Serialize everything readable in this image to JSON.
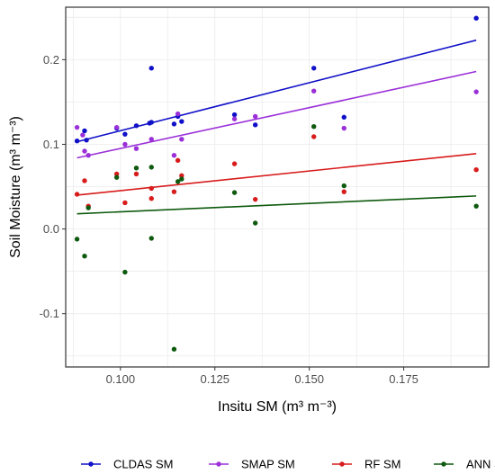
{
  "chart_data": {
    "type": "scatter",
    "title": "",
    "xlabel": "Insitu SM (m³ m⁻³)",
    "ylabel": "Soil Moisture (m³ m⁻³)",
    "xlim": [
      0.0855,
      0.1975
    ],
    "ylim": [
      -0.163,
      0.262
    ],
    "x_ticks": [
      0.1,
      0.125,
      0.15,
      0.175
    ],
    "x_tick_labels": [
      "0.100",
      "0.125",
      "0.150",
      "0.175"
    ],
    "y_ticks": [
      -0.1,
      0.0,
      0.1,
      0.2
    ],
    "y_tick_labels": [
      "-0.1",
      "0.0",
      "0.1",
      "0.2"
    ],
    "grid": true,
    "legend_position": "bottom",
    "series": [
      {
        "name": "CLDAS SM",
        "color": "#1010c8",
        "points": [
          [
            0.0885,
            0.104
          ],
          [
            0.0905,
            0.116
          ],
          [
            0.091,
            0.105
          ],
          [
            0.099,
            0.119
          ],
          [
            0.1012,
            0.112
          ],
          [
            0.1042,
            0.122
          ],
          [
            0.1077,
            0.125
          ],
          [
            0.1082,
            0.126
          ],
          [
            0.1082,
            0.19
          ],
          [
            0.1142,
            0.124
          ],
          [
            0.1152,
            0.133
          ],
          [
            0.1162,
            0.127
          ],
          [
            0.1302,
            0.135
          ],
          [
            0.1357,
            0.123
          ],
          [
            0.1512,
            0.19
          ],
          [
            0.1592,
            0.132
          ],
          [
            0.1942,
            0.249
          ]
        ],
        "fit": [
          [
            0.0885,
            0.103
          ],
          [
            0.1942,
            0.223
          ]
        ]
      },
      {
        "name": "SMAP SM",
        "color": "#9b30d9",
        "points": [
          [
            0.0885,
            0.12
          ],
          [
            0.09,
            0.111
          ],
          [
            0.0905,
            0.092
          ],
          [
            0.0915,
            0.087
          ],
          [
            0.099,
            0.12
          ],
          [
            0.1012,
            0.1
          ],
          [
            0.1042,
            0.095
          ],
          [
            0.1082,
            0.106
          ],
          [
            0.1142,
            0.087
          ],
          [
            0.1152,
            0.136
          ],
          [
            0.1162,
            0.106
          ],
          [
            0.1302,
            0.13
          ],
          [
            0.1357,
            0.133
          ],
          [
            0.1512,
            0.163
          ],
          [
            0.1592,
            0.119
          ],
          [
            0.1942,
            0.162
          ]
        ],
        "fit": [
          [
            0.0885,
            0.084
          ],
          [
            0.1942,
            0.186
          ]
        ]
      },
      {
        "name": "RF SM",
        "color": "#d81b1b",
        "points": [
          [
            0.0885,
            0.041
          ],
          [
            0.0905,
            0.057
          ],
          [
            0.0915,
            0.027
          ],
          [
            0.099,
            0.065
          ],
          [
            0.1012,
            0.031
          ],
          [
            0.1042,
            0.065
          ],
          [
            0.1082,
            0.048
          ],
          [
            0.1082,
            0.036
          ],
          [
            0.1142,
            0.044
          ],
          [
            0.1152,
            0.081
          ],
          [
            0.1162,
            0.063
          ],
          [
            0.1302,
            0.077
          ],
          [
            0.1357,
            0.035
          ],
          [
            0.1512,
            0.109
          ],
          [
            0.1592,
            0.044
          ],
          [
            0.1942,
            0.07
          ]
        ],
        "fit": [
          [
            0.0885,
            0.04
          ],
          [
            0.1942,
            0.089
          ]
        ]
      },
      {
        "name": "ANN SM",
        "color": "#0e5a0e",
        "points": [
          [
            0.0885,
            -0.012
          ],
          [
            0.0905,
            -0.032
          ],
          [
            0.0915,
            0.025
          ],
          [
            0.099,
            0.061
          ],
          [
            0.1012,
            -0.051
          ],
          [
            0.1042,
            0.072
          ],
          [
            0.1082,
            0.073
          ],
          [
            0.1082,
            -0.011
          ],
          [
            0.1142,
            -0.142
          ],
          [
            0.1152,
            0.056
          ],
          [
            0.1162,
            0.059
          ],
          [
            0.1302,
            0.043
          ],
          [
            0.1357,
            0.007
          ],
          [
            0.1512,
            0.121
          ],
          [
            0.1592,
            0.051
          ],
          [
            0.1942,
            0.027
          ]
        ],
        "fit": [
          [
            0.0885,
            0.018
          ],
          [
            0.1942,
            0.039
          ]
        ]
      }
    ]
  }
}
